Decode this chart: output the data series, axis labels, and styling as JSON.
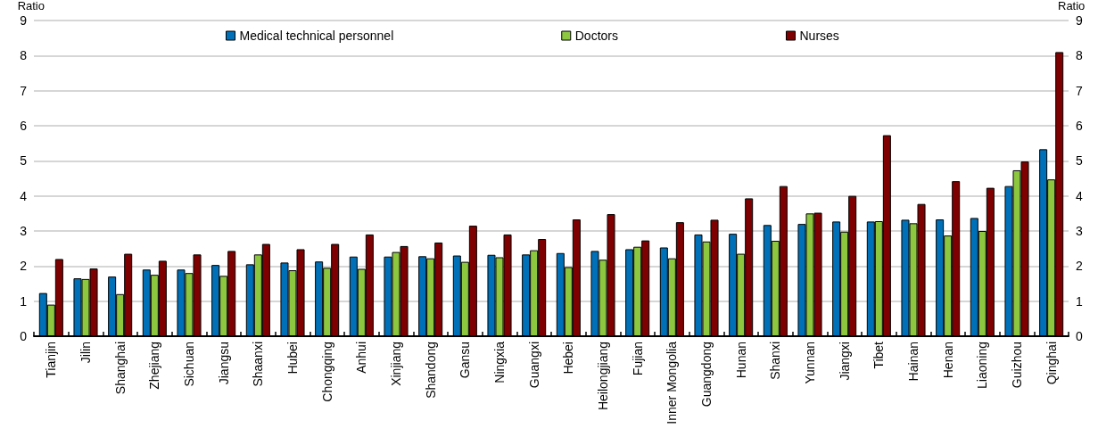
{
  "chart_data": {
    "type": "bar",
    "ylabel": "Ratio",
    "y2label": "Ratio",
    "categories": [
      "Tianjin",
      "Jilin",
      "Shanghai",
      "Zhejiang",
      "Sichuan",
      "Jiangsu",
      "Shaanxi",
      "Hubei",
      "Chongqing",
      "Anhui",
      "Xinjiang",
      "Shandong",
      "Gansu",
      "Ningxia",
      "Guangxi",
      "Hebei",
      "Heilongjiang",
      "Fujian",
      "Inner Mongolia",
      "Guangdong",
      "Hunan",
      "Shanxi",
      "Yunnan",
      "Jiangxi",
      "Tibet",
      "Hainan",
      "Henan",
      "Liaoning",
      "Guizhou",
      "Qinghai"
    ],
    "series": [
      {
        "name": "Medical technical personnel",
        "color": "#0070b8",
        "values": [
          1.23,
          1.65,
          1.7,
          1.9,
          1.9,
          2.03,
          2.05,
          2.1,
          2.13,
          2.27,
          2.27,
          2.28,
          2.3,
          2.32,
          2.33,
          2.37,
          2.43,
          2.48,
          2.53,
          2.9,
          2.92,
          3.17,
          3.2,
          3.27,
          3.27,
          3.32,
          3.33,
          3.37,
          4.28,
          5.33
        ]
      },
      {
        "name": "Doctors",
        "color": "#8dc63f",
        "values": [
          0.9,
          1.63,
          1.2,
          1.75,
          1.8,
          1.72,
          2.33,
          1.88,
          1.95,
          1.92,
          2.4,
          2.22,
          2.12,
          2.25,
          2.45,
          1.97,
          2.18,
          2.55,
          2.22,
          2.7,
          2.35,
          2.72,
          3.5,
          2.98,
          3.28,
          3.22,
          2.87,
          3.0,
          4.73,
          4.47
        ]
      },
      {
        "name": "Nurses",
        "color": "#7f0000",
        "values": [
          2.2,
          1.93,
          2.35,
          2.15,
          2.33,
          2.43,
          2.63,
          2.48,
          2.63,
          2.9,
          2.57,
          2.67,
          3.15,
          2.9,
          2.77,
          3.33,
          3.48,
          2.73,
          3.25,
          3.32,
          3.93,
          4.28,
          3.52,
          4.0,
          5.73,
          3.77,
          4.42,
          4.23,
          4.98,
          8.1
        ]
      }
    ],
    "ylim": [
      0,
      9
    ],
    "yticks": [
      0,
      1,
      2,
      3,
      4,
      5,
      6,
      7,
      8,
      9
    ],
    "y2lim": [
      0,
      9
    ],
    "y2ticks": [
      0,
      1,
      2,
      3,
      4,
      5,
      6,
      7,
      8,
      9
    ],
    "grid": "y",
    "legend": "top"
  }
}
